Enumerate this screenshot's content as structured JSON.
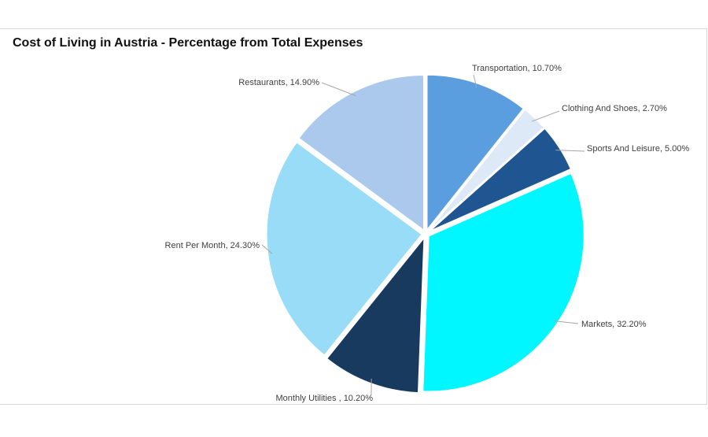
{
  "chart_data": {
    "type": "pie",
    "title": "Cost of Living in Austria - Percentage from Total Expenses",
    "slices": [
      {
        "name": "Transportation",
        "value": 10.7,
        "label": "Transportation, 10.70%",
        "color": "#5a9ee0"
      },
      {
        "name": "Clothing And Shoes",
        "value": 2.7,
        "label": "Clothing And Shoes, 2.70%",
        "color": "#dde9f7"
      },
      {
        "name": "Sports And Leisure",
        "value": 5.0,
        "label": "Sports And Leisure, 5.00%",
        "color": "#1f5590"
      },
      {
        "name": "Markets",
        "value": 32.2,
        "label": "Markets, 32.20%",
        "color": "#00f7ff"
      },
      {
        "name": "Monthly Utilities",
        "value": 10.2,
        "label": "Monthly Utilities , 10.20%",
        "color": "#183a5e"
      },
      {
        "name": "Rent Per Month",
        "value": 24.3,
        "label": "Rent Per Month, 24.30%",
        "color": "#99dcf7"
      },
      {
        "name": "Restaurants",
        "value": 14.9,
        "label": "Restaurants, 14.90%",
        "color": "#aac9ec"
      }
    ],
    "start_angle": "12 o'clock",
    "direction": "clockwise",
    "legend": "none"
  }
}
